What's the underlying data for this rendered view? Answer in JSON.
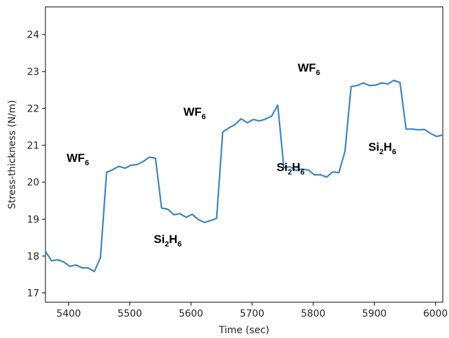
{
  "chart_data": {
    "type": "line",
    "title": "",
    "xlabel": "Time (sec)",
    "ylabel": "Stress-thickness (N/m)",
    "xlim": [
      5362,
      6012
    ],
    "ylim": [
      16.75,
      24.75
    ],
    "xticks": [
      5400,
      5500,
      5600,
      5700,
      5800,
      5900,
      6000
    ],
    "yticks": [
      17,
      18,
      19,
      20,
      21,
      22,
      23,
      24
    ],
    "grid": false,
    "legend": null,
    "line_color": "#3b84c4",
    "series": [
      {
        "x": [
          5362,
          5372,
          5382,
          5392,
          5402,
          5412,
          5422,
          5432,
          5442,
          5452,
          5462,
          5472,
          5482,
          5492,
          5502,
          5512,
          5522,
          5532,
          5542,
          5552,
          5562,
          5572,
          5582,
          5592,
          5602,
          5612,
          5622,
          5632,
          5642,
          5652,
          5662,
          5672,
          5682,
          5692,
          5702,
          5712,
          5722,
          5732,
          5742,
          5752,
          5762,
          5772,
          5782,
          5792,
          5802,
          5812,
          5822,
          5832,
          5842,
          5852,
          5862,
          5872,
          5882,
          5892,
          5902,
          5912,
          5922,
          5932,
          5942,
          5952,
          5962,
          5972,
          5982,
          5992,
          6002,
          6012
        ],
        "y": [
          18.13,
          17.87,
          17.9,
          17.84,
          17.72,
          17.76,
          17.68,
          17.68,
          17.58,
          17.96,
          20.27,
          20.34,
          20.43,
          20.38,
          20.46,
          20.48,
          20.56,
          20.68,
          20.65,
          19.3,
          19.27,
          19.12,
          19.15,
          19.05,
          19.13,
          18.99,
          18.91,
          18.96,
          19.02,
          21.36,
          21.47,
          21.56,
          21.72,
          21.61,
          21.7,
          21.66,
          21.71,
          21.79,
          22.09,
          20.4,
          20.42,
          20.32,
          20.36,
          20.33,
          20.2,
          20.2,
          20.14,
          20.28,
          20.26,
          20.84,
          22.59,
          22.62,
          22.69,
          22.62,
          22.63,
          22.69,
          22.66,
          22.76,
          22.7,
          21.44,
          21.44,
          21.42,
          21.43,
          21.32,
          21.24,
          21.28
        ]
      }
    ],
    "annotations": [
      {
        "base": "WF",
        "sub": "6",
        "x": 5415,
        "y": 20.55
      },
      {
        "base": "Si",
        "sub": "2",
        "base2": "H",
        "sub2": "6",
        "x": 5562,
        "y": 18.35
      },
      {
        "base": "WF",
        "sub": "6",
        "x": 5606,
        "y": 21.8
      },
      {
        "base": "Si",
        "sub": "2",
        "base2": "H",
        "sub2": "6",
        "x": 5763,
        "y": 20.3
      },
      {
        "base": "WF",
        "sub": "6",
        "x": 5793,
        "y": 23.0
      },
      {
        "base": "Si",
        "sub": "2",
        "base2": "H",
        "sub2": "6",
        "x": 5913,
        "y": 20.85
      }
    ]
  }
}
